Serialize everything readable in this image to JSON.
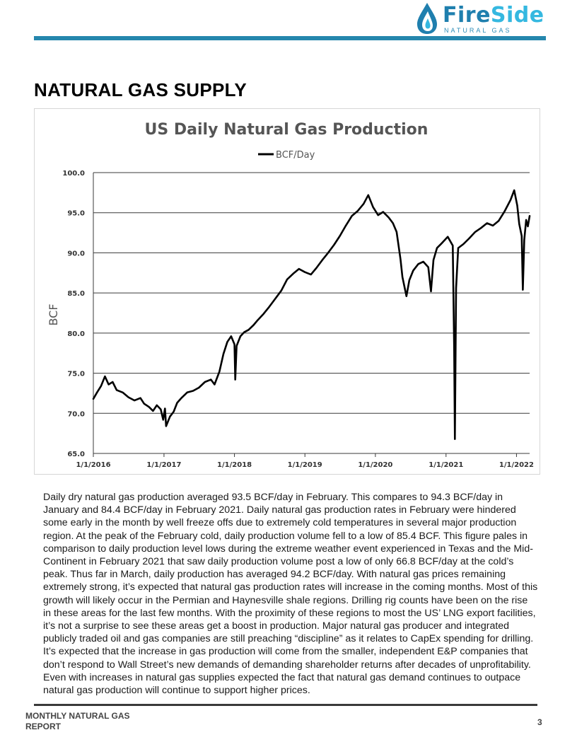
{
  "logo": {
    "brand_part1": "Fire",
    "brand_part2": "Side",
    "tagline": "NATURAL GAS",
    "icon": "flame-drop-icon",
    "colors": {
      "primary": "#1f7fae",
      "secondary": "#35b8e0"
    }
  },
  "page": {
    "section_title": "NATURAL GAS SUPPLY",
    "body_text": "Daily dry natural gas production averaged 93.5 BCF/day in February.  This compares to 94.3 BCF/day in January and 84.4 BCF/day in February 2021.  Daily natural gas production rates in February were hindered some early in the month by well freeze offs due to extremely cold temperatures in several major production region.  At the peak of the February cold, daily production volume fell to a low of 85.4 BCF.  This figure pales in comparison to daily production level lows during the extreme weather event experienced in Texas and the Mid-Continent in February 2021 that saw daily production volume post a low of only 66.8 BCF/day at the cold’s peak.  Thus far in March, daily production has averaged 94.2 BCF/day.  With natural gas prices remaining extremely strong, it’s expected that natural gas production rates will increase in the coming months.  Most of this growth will likely occur in the Permian and Haynesville shale regions.  Drilling rig counts have been on the rise in these areas for the last few months.  With the proximity of these regions to most the US’ LNG export facilities, it’s not a surprise to see these areas get a boost in production.  Major natural gas producer and integrated publicly traded oil and gas companies are still preaching “discipline” as it relates to CapEx spending for drilling.  It’s expected that the increase in gas production will come from the smaller, independent E&P companies that don’t respond to Wall Street’s new demands of demanding shareholder returns after decades of unprofitability.  Even with increases in natural gas supplies expected the fact that natural gas demand continues to outpace natural gas production will continue to support higher prices.",
    "footer_left": "MONTHLY NATURAL GAS REPORT",
    "page_number": "3",
    "accent_color": "#2587ad"
  },
  "chart_data": {
    "type": "line",
    "title": "US Daily Natural Gas Production",
    "ylabel": "BCF",
    "xlabel": "",
    "legend": "top-center",
    "grid": "horizontal",
    "ylim": [
      65.0,
      100.0
    ],
    "xlim": [
      "2016-01-01",
      "2022-03-10"
    ],
    "y_ticks": [
      "100.0",
      "95.0",
      "90.0",
      "85.0",
      "80.0",
      "75.0",
      "70.0",
      "65.0"
    ],
    "x_ticks": [
      "1/1/2016",
      "1/1/2017",
      "1/1/2018",
      "1/1/2019",
      "1/1/2020",
      "1/1/2021",
      "1/1/2022"
    ],
    "series": [
      {
        "name": "BCF/Day",
        "color": "#000000",
        "points": [
          [
            "2016-01-01",
            71.8
          ],
          [
            "2016-01-20",
            72.6
          ],
          [
            "2016-02-10",
            73.4
          ],
          [
            "2016-03-01",
            74.6
          ],
          [
            "2016-03-20",
            73.6
          ],
          [
            "2016-04-10",
            73.9
          ],
          [
            "2016-05-01",
            72.9
          ],
          [
            "2016-06-01",
            72.6
          ],
          [
            "2016-07-01",
            72.0
          ],
          [
            "2016-08-01",
            71.6
          ],
          [
            "2016-09-01",
            71.9
          ],
          [
            "2016-09-20",
            71.2
          ],
          [
            "2016-10-15",
            70.8
          ],
          [
            "2016-11-05",
            70.3
          ],
          [
            "2016-11-25",
            71.0
          ],
          [
            "2016-12-15",
            70.5
          ],
          [
            "2016-12-28",
            69.2
          ],
          [
            "2017-01-06",
            70.6
          ],
          [
            "2017-01-12",
            68.4
          ],
          [
            "2017-02-01",
            69.6
          ],
          [
            "2017-02-20",
            70.2
          ],
          [
            "2017-03-10",
            71.3
          ],
          [
            "2017-04-01",
            71.9
          ],
          [
            "2017-05-01",
            72.6
          ],
          [
            "2017-06-01",
            72.8
          ],
          [
            "2017-07-01",
            73.2
          ],
          [
            "2017-08-01",
            73.9
          ],
          [
            "2017-09-01",
            74.2
          ],
          [
            "2017-09-20",
            73.6
          ],
          [
            "2017-10-15",
            75.2
          ],
          [
            "2017-11-05",
            77.4
          ],
          [
            "2017-11-25",
            78.9
          ],
          [
            "2017-12-15",
            79.6
          ],
          [
            "2018-01-01",
            78.6
          ],
          [
            "2018-01-05",
            74.2
          ],
          [
            "2018-01-12",
            78.4
          ],
          [
            "2018-02-01",
            79.6
          ],
          [
            "2018-02-20",
            80.1
          ],
          [
            "2018-03-15",
            80.4
          ],
          [
            "2018-04-10",
            81.0
          ],
          [
            "2018-05-01",
            81.6
          ],
          [
            "2018-06-01",
            82.4
          ],
          [
            "2018-07-01",
            83.3
          ],
          [
            "2018-08-01",
            84.3
          ],
          [
            "2018-09-01",
            85.3
          ],
          [
            "2018-10-01",
            86.7
          ],
          [
            "2018-11-01",
            87.4
          ],
          [
            "2018-12-01",
            88.0
          ],
          [
            "2019-01-01",
            87.6
          ],
          [
            "2019-02-01",
            87.3
          ],
          [
            "2019-03-01",
            88.1
          ],
          [
            "2019-04-01",
            89.1
          ],
          [
            "2019-05-01",
            90.0
          ],
          [
            "2019-06-01",
            91.0
          ],
          [
            "2019-07-01",
            92.1
          ],
          [
            "2019-08-01",
            93.4
          ],
          [
            "2019-09-01",
            94.6
          ],
          [
            "2019-10-01",
            95.2
          ],
          [
            "2019-11-01",
            96.1
          ],
          [
            "2019-11-25",
            97.2
          ],
          [
            "2019-12-20",
            95.7
          ],
          [
            "2020-01-15",
            94.7
          ],
          [
            "2020-02-10",
            95.1
          ],
          [
            "2020-03-10",
            94.4
          ],
          [
            "2020-04-01",
            93.7
          ],
          [
            "2020-04-20",
            92.6
          ],
          [
            "2020-05-10",
            89.2
          ],
          [
            "2020-05-20",
            87.0
          ],
          [
            "2020-06-01",
            85.6
          ],
          [
            "2020-06-10",
            84.6
          ],
          [
            "2020-06-25",
            86.6
          ],
          [
            "2020-07-15",
            87.8
          ],
          [
            "2020-08-10",
            88.6
          ],
          [
            "2020-09-05",
            88.9
          ],
          [
            "2020-10-01",
            88.2
          ],
          [
            "2020-10-15",
            85.2
          ],
          [
            "2020-10-28",
            89.1
          ],
          [
            "2020-11-15",
            90.6
          ],
          [
            "2020-12-10",
            91.2
          ],
          [
            "2021-01-10",
            92.0
          ],
          [
            "2021-02-05",
            90.9
          ],
          [
            "2021-02-12",
            78.0
          ],
          [
            "2021-02-16",
            66.8
          ],
          [
            "2021-02-22",
            85.6
          ],
          [
            "2021-03-05",
            90.6
          ],
          [
            "2021-04-01",
            91.1
          ],
          [
            "2021-05-01",
            91.8
          ],
          [
            "2021-06-01",
            92.6
          ],
          [
            "2021-07-01",
            93.1
          ],
          [
            "2021-08-01",
            93.7
          ],
          [
            "2021-09-01",
            93.4
          ],
          [
            "2021-10-01",
            94.0
          ],
          [
            "2021-11-01",
            95.2
          ],
          [
            "2021-12-01",
            96.6
          ],
          [
            "2021-12-20",
            97.8
          ],
          [
            "2022-01-05",
            95.9
          ],
          [
            "2022-01-15",
            93.6
          ],
          [
            "2022-01-28",
            92.1
          ],
          [
            "2022-02-03",
            85.4
          ],
          [
            "2022-02-10",
            91.6
          ],
          [
            "2022-02-20",
            94.1
          ],
          [
            "2022-03-01",
            93.3
          ],
          [
            "2022-03-10",
            94.6
          ]
        ]
      }
    ]
  }
}
